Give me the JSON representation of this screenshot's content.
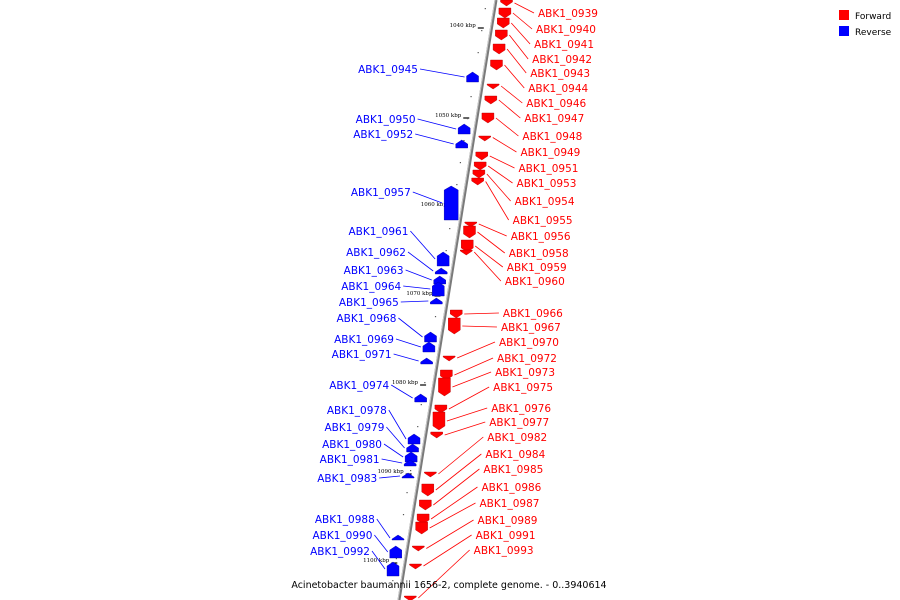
{
  "caption": "Acinetobacter baumannii 1656-2, complete genome. - 0..3940614",
  "legend": [
    {
      "label": "Forward",
      "color": "#ff0000"
    },
    {
      "label": "Reverse",
      "color": "#0000ff"
    }
  ],
  "colors": {
    "forward": "#ff0000",
    "reverse": "#0000ff",
    "backbone": "#808080"
  },
  "ticks": [
    "1040 kbp",
    "1050 kbp",
    "1060 kbp",
    "1070 kbp",
    "1080 kbp",
    "1090 kbp",
    "1100 kbp"
  ],
  "genes_forward": [
    "ABK1_0939",
    "ABK1_0940",
    "ABK1_0941",
    "ABK1_0942",
    "ABK1_0943",
    "ABK1_0944",
    "ABK1_0946",
    "ABK1_0947",
    "ABK1_0948",
    "ABK1_0949",
    "ABK1_0951",
    "ABK1_0953",
    "ABK1_0954",
    "ABK1_0955",
    "ABK1_0956",
    "ABK1_0958",
    "ABK1_0959",
    "ABK1_0960",
    "ABK1_0966",
    "ABK1_0967",
    "ABK1_0970",
    "ABK1_0972",
    "ABK1_0973",
    "ABK1_0975",
    "ABK1_0976",
    "ABK1_0977",
    "ABK1_0982",
    "ABK1_0984",
    "ABK1_0985",
    "ABK1_0986",
    "ABK1_0987",
    "ABK1_0989",
    "ABK1_0991",
    "ABK1_0993"
  ],
  "genes_reverse": [
    "ABK1_0945",
    "ABK1_0950",
    "ABK1_0952",
    "ABK1_0957",
    "ABK1_0961",
    "ABK1_0962",
    "ABK1_0963",
    "ABK1_0964",
    "ABK1_0965",
    "ABK1_0968",
    "ABK1_0969",
    "ABK1_0971",
    "ABK1_0974",
    "ABK1_0978",
    "ABK1_0979",
    "ABK1_0980",
    "ABK1_0981",
    "ABK1_0983",
    "ABK1_0988",
    "ABK1_0990",
    "ABK1_0992"
  ]
}
